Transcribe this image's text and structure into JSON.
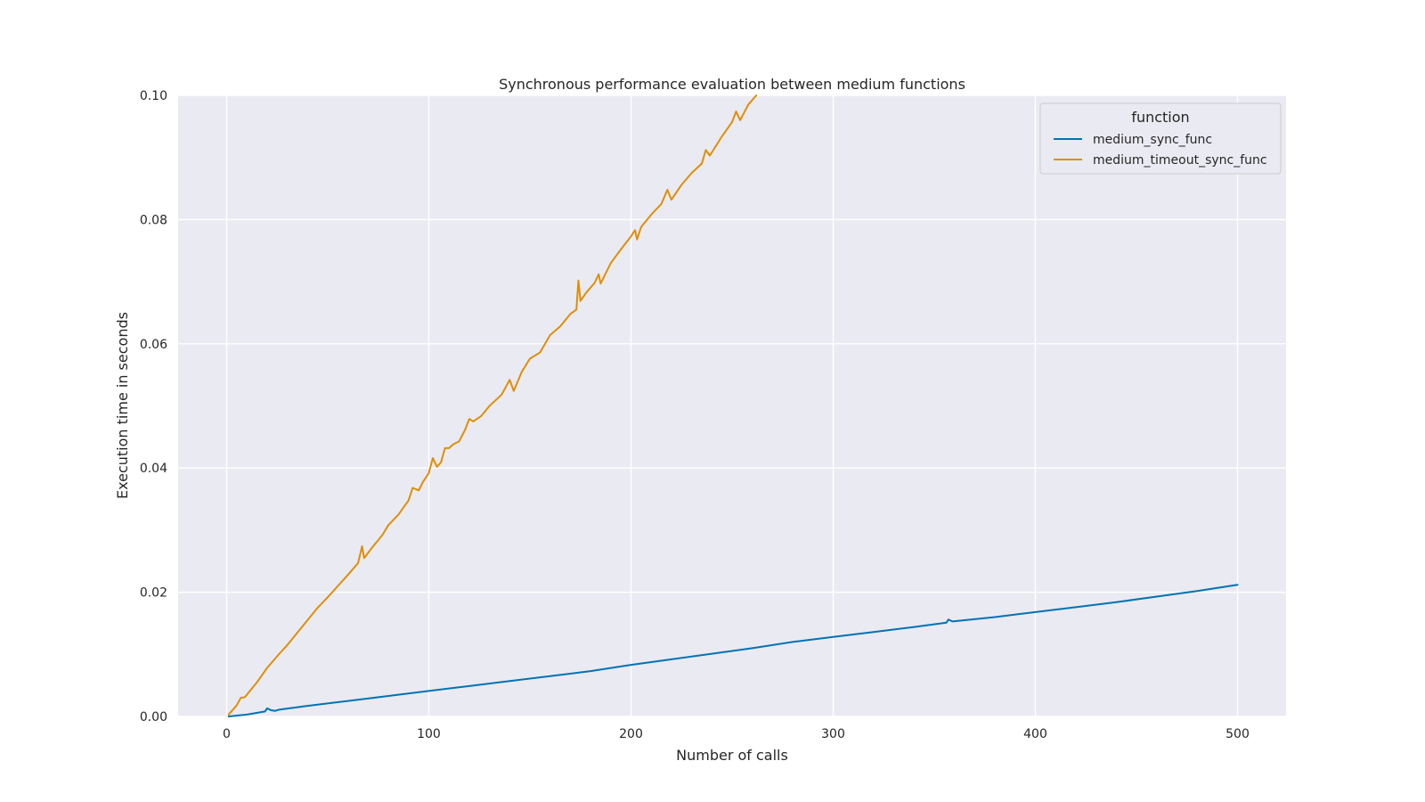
{
  "chart_data": {
    "type": "line",
    "title": "Synchronous performance evaluation between medium functions",
    "xlabel": "Number of calls",
    "ylabel": "Execution time in seconds",
    "xlim": [
      -24,
      524
    ],
    "ylim": [
      0.0,
      0.1
    ],
    "xticks": [
      0,
      100,
      200,
      300,
      400,
      500
    ],
    "xtick_labels": [
      "0",
      "100",
      "200",
      "300",
      "400",
      "500"
    ],
    "yticks": [
      0.0,
      0.02,
      0.04,
      0.06,
      0.08,
      0.1
    ],
    "ytick_labels": [
      "0.00",
      "0.02",
      "0.04",
      "0.06",
      "0.08",
      "0.10"
    ],
    "grid": true,
    "legend": {
      "title": "function",
      "placement": "top-right"
    },
    "series": [
      {
        "name": "medium_sync_func",
        "color": "#0173b2",
        "points": [
          [
            1,
            0.0
          ],
          [
            10,
            0.0003
          ],
          [
            19,
            0.0008
          ],
          [
            20,
            0.0013
          ],
          [
            22,
            0.001
          ],
          [
            24,
            0.0009
          ],
          [
            26,
            0.0011
          ],
          [
            40,
            0.0017
          ],
          [
            60,
            0.0025
          ],
          [
            80,
            0.0033
          ],
          [
            100,
            0.0041
          ],
          [
            120,
            0.0049
          ],
          [
            140,
            0.0057
          ],
          [
            160,
            0.0065
          ],
          [
            180,
            0.0073
          ],
          [
            200,
            0.0083
          ],
          [
            220,
            0.0092
          ],
          [
            240,
            0.0101
          ],
          [
            260,
            0.011
          ],
          [
            280,
            0.012
          ],
          [
            300,
            0.0128
          ],
          [
            320,
            0.0136
          ],
          [
            340,
            0.0144
          ],
          [
            356,
            0.0151
          ],
          [
            357,
            0.0156
          ],
          [
            359,
            0.0153
          ],
          [
            380,
            0.016
          ],
          [
            400,
            0.0168
          ],
          [
            420,
            0.0176
          ],
          [
            440,
            0.0184
          ],
          [
            460,
            0.0193
          ],
          [
            480,
            0.0202
          ],
          [
            500,
            0.0212
          ]
        ]
      },
      {
        "name": "medium_timeout_sync_func",
        "color": "#de8f05",
        "points": [
          [
            1,
            0.0003
          ],
          [
            5,
            0.0018
          ],
          [
            7,
            0.003
          ],
          [
            9,
            0.0031
          ],
          [
            15,
            0.0055
          ],
          [
            20,
            0.0078
          ],
          [
            25,
            0.0097
          ],
          [
            30,
            0.0115
          ],
          [
            35,
            0.0135
          ],
          [
            40,
            0.0155
          ],
          [
            45,
            0.0175
          ],
          [
            50,
            0.0192
          ],
          [
            55,
            0.021
          ],
          [
            60,
            0.0228
          ],
          [
            65,
            0.0247
          ],
          [
            67,
            0.0274
          ],
          [
            68,
            0.0255
          ],
          [
            72,
            0.0272
          ],
          [
            77,
            0.0292
          ],
          [
            80,
            0.0308
          ],
          [
            85,
            0.0325
          ],
          [
            90,
            0.0348
          ],
          [
            92,
            0.0368
          ],
          [
            95,
            0.0364
          ],
          [
            97,
            0.0377
          ],
          [
            100,
            0.0392
          ],
          [
            102,
            0.0416
          ],
          [
            104,
            0.0402
          ],
          [
            106,
            0.0409
          ],
          [
            108,
            0.0432
          ],
          [
            110,
            0.0432
          ],
          [
            112,
            0.0438
          ],
          [
            115,
            0.0443
          ],
          [
            118,
            0.0462
          ],
          [
            120,
            0.0479
          ],
          [
            122,
            0.0475
          ],
          [
            126,
            0.0484
          ],
          [
            130,
            0.05
          ],
          [
            136,
            0.0518
          ],
          [
            140,
            0.0542
          ],
          [
            142,
            0.0524
          ],
          [
            146,
            0.0555
          ],
          [
            150,
            0.0576
          ],
          [
            155,
            0.0586
          ],
          [
            160,
            0.0614
          ],
          [
            165,
            0.0628
          ],
          [
            170,
            0.0648
          ],
          [
            173,
            0.0655
          ],
          [
            174,
            0.0702
          ],
          [
            175,
            0.0669
          ],
          [
            178,
            0.0683
          ],
          [
            182,
            0.0698
          ],
          [
            184,
            0.0712
          ],
          [
            185,
            0.0697
          ],
          [
            190,
            0.073
          ],
          [
            195,
            0.0752
          ],
          [
            200,
            0.0773
          ],
          [
            202,
            0.0783
          ],
          [
            203,
            0.0768
          ],
          [
            205,
            0.0788
          ],
          [
            210,
            0.0808
          ],
          [
            215,
            0.0825
          ],
          [
            218,
            0.0848
          ],
          [
            220,
            0.0832
          ],
          [
            225,
            0.0856
          ],
          [
            230,
            0.0875
          ],
          [
            235,
            0.089
          ],
          [
            237,
            0.0912
          ],
          [
            239,
            0.0903
          ],
          [
            245,
            0.0934
          ],
          [
            250,
            0.0957
          ],
          [
            252,
            0.0974
          ],
          [
            254,
            0.096
          ],
          [
            258,
            0.0985
          ],
          [
            262,
            0.1
          ]
        ]
      }
    ]
  }
}
